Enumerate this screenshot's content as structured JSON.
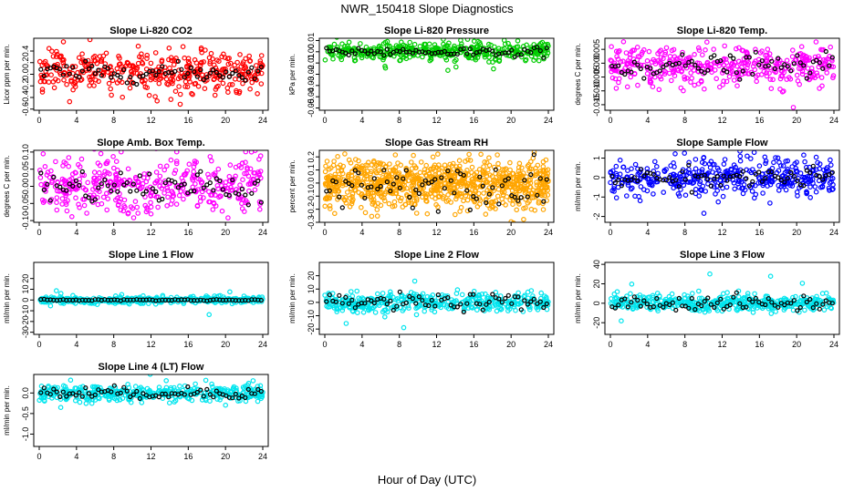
{
  "title": "NWR_150418  Slope Diagnostics",
  "xlabel": "Hour of Day (UTC)",
  "chart_data": [
    {
      "type": "scatter",
      "title": "Slope Li-820 CO2",
      "ylabel": "Licor ppm per min.",
      "color": "#ff0000",
      "xlim": [
        0,
        24
      ],
      "ylim": [
        -0.62,
        0.62
      ],
      "xticks": [
        0,
        4,
        8,
        12,
        16,
        20,
        24
      ],
      "yticks": [
        -0.6,
        -0.4,
        -0.2,
        0.0,
        0.2,
        0.4
      ],
      "yticklabels": [
        "-0.6",
        "-0.4",
        "-0.2",
        "0.0",
        "0.2",
        "0.4"
      ],
      "series": [
        {
          "values_summary": {
            "center": 0.05,
            "spread": 0.17
          },
          "count": 420
        },
        {
          "values_summary": {
            "center": 0.03,
            "spread": 0.08
          },
          "count": 70
        }
      ]
    },
    {
      "type": "scatter",
      "title": "Slope Li-820 Pressure",
      "ylabel": "kPa per min.",
      "color": "#00cc00",
      "xlim": [
        0,
        24
      ],
      "ylim": [
        -0.052,
        0.012
      ],
      "xticks": [
        0,
        4,
        8,
        12,
        16,
        20,
        24
      ],
      "yticks": [
        -0.05,
        -0.04,
        -0.03,
        -0.02,
        -0.01,
        0.0,
        0.01
      ],
      "yticklabels": [
        "-0.05",
        "-0.04",
        "-0.03",
        "-0.02",
        "-0.01",
        "0.00",
        "0.01"
      ],
      "series": [
        {
          "values_summary": {
            "center": 0.0,
            "spread": 0.004
          },
          "count": 420
        },
        {
          "values_summary": {
            "center": 0.0,
            "spread": 0.002
          },
          "count": 70
        }
      ]
    },
    {
      "type": "scatter",
      "title": "Slope Li-820 Temp.",
      "ylabel": "degrees C per min.",
      "color": "#ff00ff",
      "xlim": [
        0,
        24
      ],
      "ylim": [
        -0.017,
        0.009
      ],
      "xticks": [
        0,
        4,
        8,
        12,
        16,
        20,
        24
      ],
      "yticks": [
        -0.015,
        -0.01,
        -0.005,
        0.0,
        0.005
      ],
      "yticklabels": [
        "-0.015",
        "-0.010",
        "-0.005",
        "0.000",
        "0.005"
      ],
      "series": [
        {
          "values_summary": {
            "center": -0.001,
            "spread": 0.0035
          },
          "count": 420
        },
        {
          "values_summary": {
            "center": -0.001,
            "spread": 0.002
          },
          "count": 70
        }
      ]
    },
    {
      "type": "scatter",
      "title": "Slope Amb. Box Temp.",
      "ylabel": "degrees C per min.",
      "color": "#ff00ff",
      "xlim": [
        0,
        24
      ],
      "ylim": [
        -0.105,
        0.105
      ],
      "xticks": [
        0,
        4,
        8,
        12,
        16,
        20,
        24
      ],
      "yticks": [
        -0.1,
        -0.05,
        0.0,
        0.05,
        0.1
      ],
      "yticklabels": [
        "-0.10",
        "-0.05",
        "0.00",
        "0.05",
        "0.10"
      ],
      "series": [
        {
          "values_summary": {
            "center": 0.0,
            "spread": 0.04
          },
          "count": 420
        },
        {
          "values_summary": {
            "center": 0.0,
            "spread": 0.025
          },
          "count": 70
        }
      ]
    },
    {
      "type": "scatter",
      "title": "Slope Gas Stream RH",
      "ylabel": "percent per min.",
      "color": "#ffa500",
      "xlim": [
        0,
        24
      ],
      "ylim": [
        -0.3,
        0.25
      ],
      "xticks": [
        0,
        4,
        8,
        12,
        16,
        20,
        24
      ],
      "yticks": [
        -0.3,
        -0.2,
        -0.1,
        0.0,
        0.1,
        0.2
      ],
      "yticklabels": [
        "-0.3",
        "-0.2",
        "-0.1",
        "0.0",
        "0.1",
        "0.2"
      ],
      "series": [
        {
          "values_summary": {
            "center": 0.0,
            "spread": 0.09
          },
          "count": 900
        },
        {
          "values_summary": {
            "center": 0.0,
            "spread": 0.08
          },
          "count": 70
        }
      ]
    },
    {
      "type": "scatter",
      "title": "Slope Sample Flow",
      "ylabel": "ml/min per min.",
      "color": "#0000ff",
      "xlim": [
        0,
        24
      ],
      "ylim": [
        -2.3,
        1.4
      ],
      "xticks": [
        0,
        4,
        8,
        12,
        16,
        20,
        24
      ],
      "yticks": [
        -2,
        -1,
        0,
        1
      ],
      "yticklabels": [
        "-2",
        "-1",
        "0",
        "1"
      ],
      "series": [
        {
          "values_summary": {
            "center": 0.0,
            "spread": 0.45
          },
          "count": 420
        },
        {
          "values_summary": {
            "center": 0.0,
            "spread": 0.25
          },
          "count": 70
        }
      ]
    },
    {
      "type": "scatter",
      "title": "Slope Line 1 Flow",
      "ylabel": "ml/min per min.",
      "color": "#00e5ee",
      "xlim": [
        0,
        24
      ],
      "ylim": [
        -32,
        35
      ],
      "xticks": [
        0,
        4,
        8,
        12,
        16,
        20,
        24
      ],
      "yticks": [
        -30,
        -20,
        -10,
        0,
        10,
        20
      ],
      "yticklabels": [
        "-30",
        "-20",
        "-10",
        "0",
        "10",
        "20"
      ],
      "series": [
        {
          "values_summary": {
            "center": 0.0,
            "spread": 1.5
          },
          "count": 420
        },
        {
          "values_summary": {
            "center": 0.0,
            "spread": 0.3
          },
          "count": 70
        }
      ]
    },
    {
      "type": "scatter",
      "title": "Slope Line 2 Flow",
      "ylabel": "ml/min per min.",
      "color": "#00e5ee",
      "xlim": [
        0,
        24
      ],
      "ylim": [
        -24,
        30
      ],
      "xticks": [
        0,
        4,
        8,
        12,
        16,
        20,
        24
      ],
      "yticks": [
        -20,
        -10,
        0,
        10,
        20
      ],
      "yticklabels": [
        "-20",
        "-10",
        "0",
        "10",
        "20"
      ],
      "series": [
        {
          "values_summary": {
            "center": 0.0,
            "spread": 3.5
          },
          "count": 420
        },
        {
          "values_summary": {
            "center": 0.0,
            "spread": 3.0
          },
          "count": 70
        }
      ]
    },
    {
      "type": "scatter",
      "title": "Slope Line 3 Flow",
      "ylabel": "ml/min per min.",
      "color": "#00e5ee",
      "xlim": [
        0,
        24
      ],
      "ylim": [
        -32,
        42
      ],
      "xticks": [
        0,
        4,
        8,
        12,
        16,
        20,
        24
      ],
      "yticks": [
        -20,
        0,
        20,
        40
      ],
      "yticklabels": [
        "-20",
        "0",
        "20",
        "40"
      ],
      "series": [
        {
          "values_summary": {
            "center": 0.0,
            "spread": 4.0
          },
          "count": 420
        },
        {
          "values_summary": {
            "center": 0.0,
            "spread": 4.0
          },
          "count": 70
        }
      ]
    },
    {
      "type": "scatter",
      "title": "Slope Line 4 (LT) Flow",
      "ylabel": "ml/min per min.",
      "color": "#00e5ee",
      "xlim": [
        0,
        24
      ],
      "ylim": [
        -1.3,
        0.45
      ],
      "xticks": [
        0,
        4,
        8,
        12,
        16,
        20,
        24
      ],
      "yticks": [
        -1.0,
        -0.5,
        0.0
      ],
      "yticklabels": [
        "-1.0",
        "-0.5",
        "0.0"
      ],
      "series": [
        {
          "values_summary": {
            "center": 0.0,
            "spread": 0.09
          },
          "count": 420
        },
        {
          "values_summary": {
            "center": 0.0,
            "spread": 0.07
          },
          "count": 70
        }
      ]
    }
  ]
}
